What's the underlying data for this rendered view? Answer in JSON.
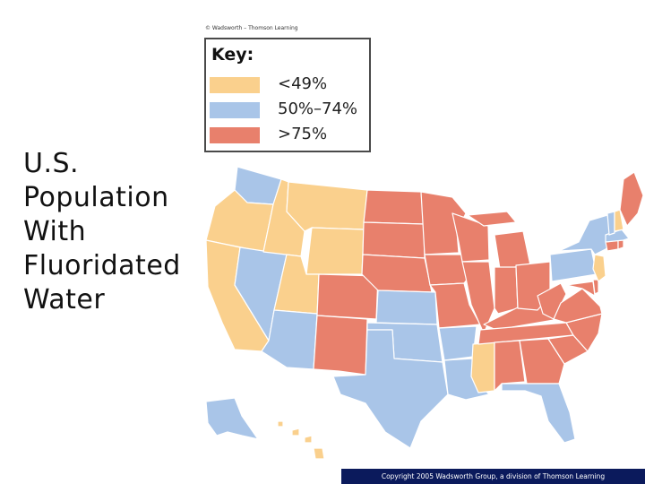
{
  "title_lines": [
    "U.S.",
    "Population",
    "With",
    "Fluoridated",
    "Water"
  ],
  "credit_top": "© Wadsworth – Thomson Learning",
  "legend": {
    "title": "Key:",
    "items": [
      {
        "label": "<49%",
        "color": "#fad08d"
      },
      {
        "label": "50%–74%",
        "color": "#a9c5e8"
      },
      {
        "label": ">75%",
        "color": "#e8806c"
      }
    ]
  },
  "copyright": "Copyright 2005 Wadsworth Group, a division of Thomson Learning",
  "states": {
    "WA": "mid",
    "OR": "low",
    "CA": "low",
    "NV": "mid",
    "ID": "low",
    "MT": "low",
    "WY": "low",
    "UT": "low",
    "AZ": "mid",
    "CO": "high",
    "NM": "high",
    "ND": "high",
    "SD": "high",
    "NE": "high",
    "KS": "mid",
    "OK": "mid",
    "TX": "mid",
    "MN": "high",
    "IA": "high",
    "MO": "high",
    "AR": "mid",
    "LA": "mid",
    "WI": "high",
    "IL": "high",
    "MS": "low",
    "MI": "high",
    "IN": "high",
    "KY": "high",
    "TN": "high",
    "AL": "high",
    "OH": "high",
    "WV": "high",
    "GA": "high",
    "FL": "mid",
    "SC": "high",
    "NC": "high",
    "VA": "high",
    "MD": "high",
    "DE": "high",
    "PA": "mid",
    "NJ": "low",
    "NY": "mid",
    "CT": "high",
    "RI": "high",
    "MA": "mid",
    "VT": "mid",
    "NH": "low",
    "ME": "high",
    "AK": "mid",
    "HI": "low"
  }
}
